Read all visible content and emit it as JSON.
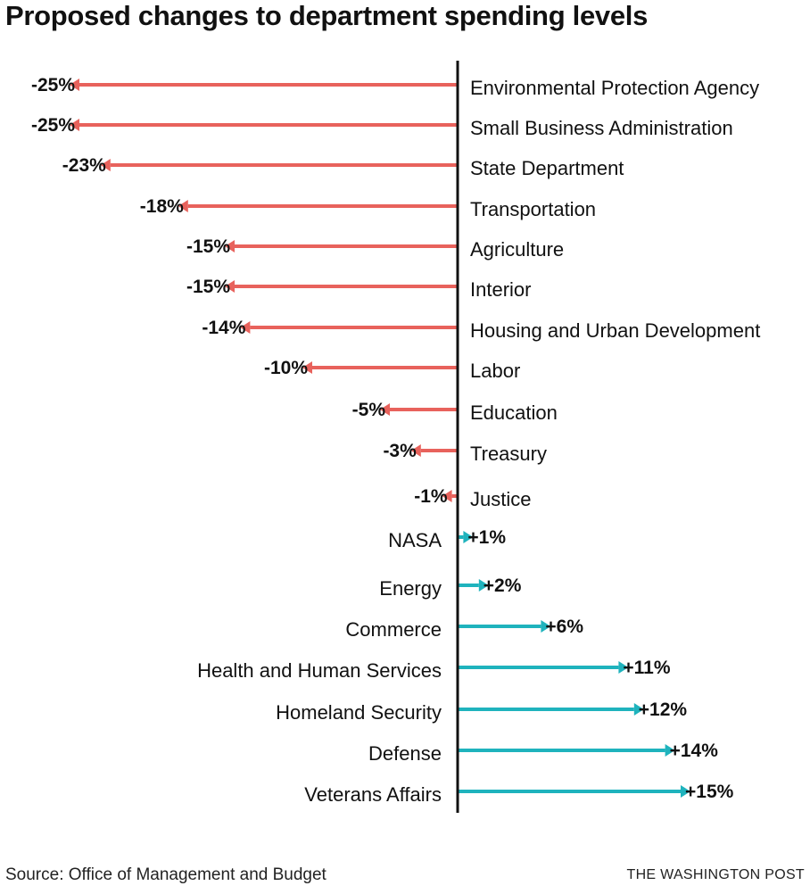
{
  "chart_data": {
    "type": "bar",
    "title": "Proposed changes to department spending levels",
    "xlabel": "",
    "ylabel": "",
    "unit": "%",
    "categories": [
      "Environmental Protection Agency",
      "Small Business Administration",
      "State Department",
      "Transportation",
      "Agriculture",
      "Interior",
      "Housing and Urban Development",
      "Labor",
      "Education",
      "Treasury",
      "Justice",
      "NASA",
      "Energy",
      "Commerce",
      "Health and Human Services",
      "Homeland Security",
      "Defense",
      "Veterans Affairs"
    ],
    "values": [
      -25,
      -25,
      -23,
      -18,
      -15,
      -15,
      -14,
      -10,
      -5,
      -3,
      -1,
      1,
      2,
      6,
      11,
      12,
      14,
      15
    ],
    "value_labels": [
      "-25%",
      "-25%",
      "-23%",
      "-18%",
      "-15%",
      "-15%",
      "-14%",
      "-10%",
      "-5%",
      "-3%",
      "-1%",
      "+1%",
      "+2%",
      "+6%",
      "+11%",
      "+12%",
      "+14%",
      "+15%"
    ],
    "xlim": [
      -25,
      15
    ],
    "grid": false,
    "colors": {
      "negative": "#e8625c",
      "positive": "#1fb3bd",
      "axis": "#111111"
    }
  },
  "footer": {
    "source": "Source: Office of Management and Budget",
    "credit": "THE WASHINGTON POST"
  }
}
